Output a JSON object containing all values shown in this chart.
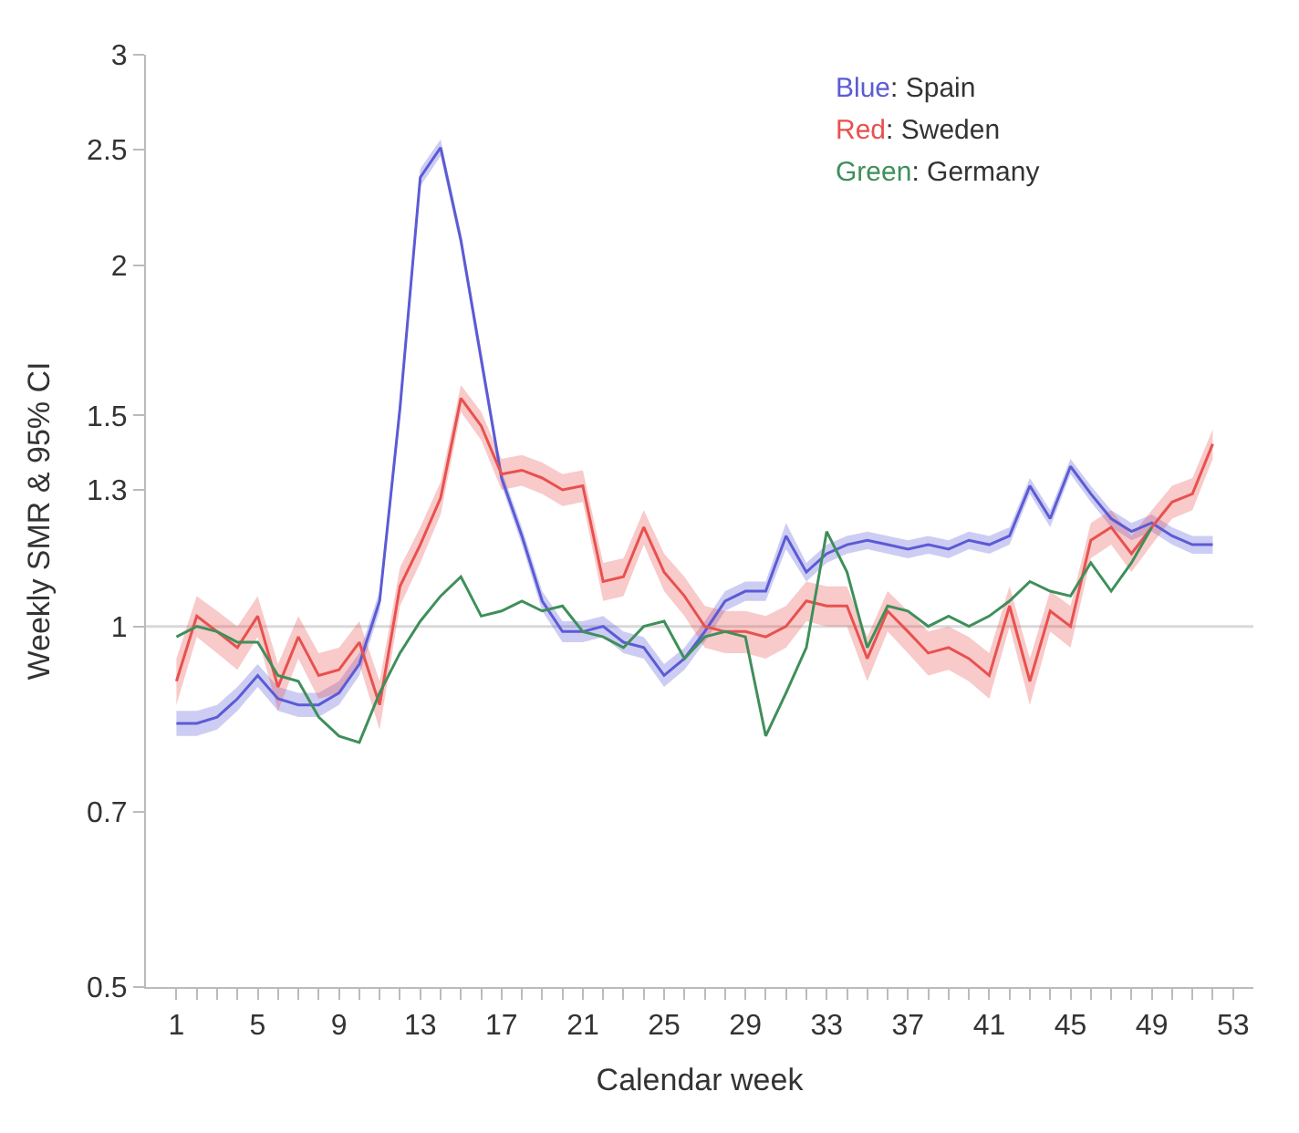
{
  "chart_data": {
    "type": "line",
    "xlabel": "Calendar week",
    "ylabel": "Weekly SMR & 95% CI",
    "x": [
      1,
      2,
      3,
      4,
      5,
      6,
      7,
      8,
      9,
      10,
      11,
      12,
      13,
      14,
      15,
      16,
      17,
      18,
      19,
      20,
      21,
      22,
      23,
      24,
      25,
      26,
      27,
      28,
      29,
      30,
      31,
      32,
      33,
      34,
      35,
      36,
      37,
      38,
      39,
      40,
      41,
      42,
      43,
      44,
      45,
      46,
      47,
      48,
      49,
      50,
      51,
      52
    ],
    "series": [
      {
        "color": "#5b5bd6",
        "values": [
          0.83,
          0.83,
          0.84,
          0.87,
          0.91,
          0.87,
          0.86,
          0.86,
          0.88,
          0.93,
          1.05,
          1.52,
          2.37,
          2.51,
          2.1,
          1.67,
          1.33,
          1.19,
          1.05,
          0.99,
          0.99,
          1.0,
          0.97,
          0.96,
          0.91,
          0.94,
          0.99,
          1.05,
          1.07,
          1.07,
          1.19,
          1.11,
          1.15,
          1.17,
          1.18,
          1.17,
          1.16,
          1.17,
          1.16,
          1.18,
          1.17,
          1.19,
          1.31,
          1.23,
          1.36,
          1.29,
          1.23,
          1.2,
          1.22,
          1.19,
          1.17,
          1.17
        ],
        "lower": [
          0.81,
          0.81,
          0.82,
          0.85,
          0.89,
          0.85,
          0.84,
          0.84,
          0.86,
          0.91,
          1.03,
          1.49,
          2.33,
          2.47,
          2.07,
          1.64,
          1.31,
          1.17,
          1.03,
          0.97,
          0.97,
          0.98,
          0.95,
          0.94,
          0.89,
          0.92,
          0.97,
          1.03,
          1.05,
          1.05,
          1.16,
          1.09,
          1.13,
          1.15,
          1.16,
          1.15,
          1.14,
          1.15,
          1.14,
          1.16,
          1.15,
          1.17,
          1.29,
          1.21,
          1.34,
          1.27,
          1.21,
          1.18,
          1.2,
          1.17,
          1.15,
          1.15
        ],
        "upper": [
          0.85,
          0.85,
          0.86,
          0.89,
          0.93,
          0.89,
          0.88,
          0.88,
          0.9,
          0.95,
          1.07,
          1.55,
          2.41,
          2.55,
          2.13,
          1.7,
          1.35,
          1.21,
          1.07,
          1.01,
          1.01,
          1.02,
          0.99,
          0.98,
          0.93,
          0.96,
          1.01,
          1.07,
          1.09,
          1.09,
          1.22,
          1.13,
          1.17,
          1.19,
          1.2,
          1.19,
          1.18,
          1.19,
          1.18,
          1.2,
          1.19,
          1.21,
          1.33,
          1.25,
          1.38,
          1.31,
          1.25,
          1.22,
          1.24,
          1.21,
          1.19,
          1.19
        ]
      },
      {
        "color": "#e8514e",
        "values": [
          0.9,
          1.02,
          0.99,
          0.96,
          1.02,
          0.89,
          0.98,
          0.91,
          0.92,
          0.97,
          0.86,
          1.08,
          1.17,
          1.28,
          1.55,
          1.47,
          1.34,
          1.35,
          1.33,
          1.3,
          1.31,
          1.09,
          1.1,
          1.21,
          1.11,
          1.06,
          1.0,
          0.99,
          0.99,
          0.98,
          1.0,
          1.05,
          1.04,
          1.04,
          0.94,
          1.03,
          0.99,
          0.95,
          0.96,
          0.94,
          0.91,
          1.04,
          0.9,
          1.03,
          1.0,
          1.18,
          1.21,
          1.15,
          1.21,
          1.27,
          1.29,
          1.42
        ],
        "lower": [
          0.86,
          0.98,
          0.95,
          0.92,
          0.98,
          0.85,
          0.94,
          0.87,
          0.88,
          0.93,
          0.82,
          1.04,
          1.13,
          1.24,
          1.51,
          1.43,
          1.3,
          1.31,
          1.29,
          1.26,
          1.27,
          1.05,
          1.06,
          1.17,
          1.07,
          1.02,
          0.96,
          0.95,
          0.95,
          0.94,
          0.96,
          1.01,
          1.0,
          1.0,
          0.9,
          0.99,
          0.95,
          0.91,
          0.92,
          0.9,
          0.87,
          1.0,
          0.86,
          0.99,
          0.96,
          1.14,
          1.17,
          1.11,
          1.17,
          1.23,
          1.25,
          1.38
        ],
        "upper": [
          0.94,
          1.06,
          1.03,
          1.0,
          1.06,
          0.93,
          1.02,
          0.95,
          0.96,
          1.01,
          0.9,
          1.12,
          1.21,
          1.32,
          1.59,
          1.51,
          1.38,
          1.39,
          1.37,
          1.34,
          1.35,
          1.13,
          1.14,
          1.25,
          1.15,
          1.1,
          1.04,
          1.03,
          1.03,
          1.02,
          1.04,
          1.09,
          1.08,
          1.08,
          0.98,
          1.07,
          1.03,
          0.99,
          1.0,
          0.98,
          0.95,
          1.08,
          0.94,
          1.07,
          1.04,
          1.22,
          1.25,
          1.19,
          1.25,
          1.31,
          1.33,
          1.46
        ]
      },
      {
        "color": "#3f8f5a",
        "values": [
          0.98,
          1.0,
          0.99,
          0.97,
          0.97,
          0.91,
          0.9,
          0.84,
          0.81,
          0.8,
          0.88,
          0.95,
          1.01,
          1.06,
          1.1,
          1.02,
          1.03,
          1.05,
          1.03,
          1.04,
          0.99,
          0.98,
          0.96,
          1.0,
          1.01,
          0.94,
          0.98,
          0.99,
          0.98,
          0.81,
          0.88,
          0.96,
          1.2,
          1.11,
          0.96,
          1.04,
          1.03,
          1.0,
          1.02,
          1.0,
          1.02,
          1.05,
          1.09,
          1.07,
          1.06,
          1.13,
          1.07,
          1.13,
          1.21,
          null,
          null,
          null
        ]
      }
    ],
    "annotations": [
      "Blue: Spain",
      "Red: Sweden",
      "Green: Germany"
    ],
    "ref_lines": [
      {
        "axis": "y",
        "value": 1,
        "color": "#d9d9d9"
      }
    ],
    "log": "y",
    "ylim": [
      0.5,
      3
    ],
    "yticks": [
      0.5,
      0.7,
      1,
      1.3,
      1.5,
      2,
      2.5,
      3
    ],
    "xlim": [
      -0.5,
      54
    ],
    "xticks": [
      1,
      {
        "value": 2,
        "label": null
      },
      {
        "value": 3,
        "label": null
      },
      {
        "value": 4,
        "label": null
      },
      5,
      {
        "value": 6,
        "label": null
      },
      {
        "value": 7,
        "label": null
      },
      {
        "value": 8,
        "label": null
      },
      9,
      {
        "value": 10,
        "label": null
      },
      {
        "value": 11,
        "label": null
      },
      {
        "value": 12,
        "label": null
      },
      13,
      {
        "value": 14,
        "label": null
      },
      {
        "value": 15,
        "label": null
      },
      {
        "value": 16,
        "label": null
      },
      17,
      {
        "value": 18,
        "label": null
      },
      {
        "value": 19,
        "label": null
      },
      {
        "value": 20,
        "label": null
      },
      21,
      {
        "value": 22,
        "label": null
      },
      {
        "value": 23,
        "label": null
      },
      {
        "value": 24,
        "label": null
      },
      25,
      {
        "value": 26,
        "label": null
      },
      {
        "value": 27,
        "label": null
      },
      {
        "value": 28,
        "label": null
      },
      29,
      {
        "value": 30,
        "label": null
      },
      {
        "value": 31,
        "label": null
      },
      {
        "value": 32,
        "label": null
      },
      33,
      {
        "value": 34,
        "label": null
      },
      {
        "value": 35,
        "label": null
      },
      {
        "value": 36,
        "label": null
      },
      37,
      {
        "value": 38,
        "label": null
      },
      {
        "value": 39,
        "label": null
      },
      {
        "value": 40,
        "label": null
      },
      41,
      {
        "value": 42,
        "label": null
      },
      {
        "value": 43,
        "label": null
      },
      {
        "value": 44,
        "label": null
      },
      45,
      {
        "value": 46,
        "label": null
      },
      {
        "value": 47,
        "label": null
      },
      {
        "value": 48,
        "label": null
      },
      49,
      {
        "value": 50,
        "label": null
      },
      {
        "value": 51,
        "label": null
      },
      {
        "value": 52,
        "label": null
      },
      53
    ],
    "grid": false,
    "marker": "none",
    "line_style": "solid"
  }
}
